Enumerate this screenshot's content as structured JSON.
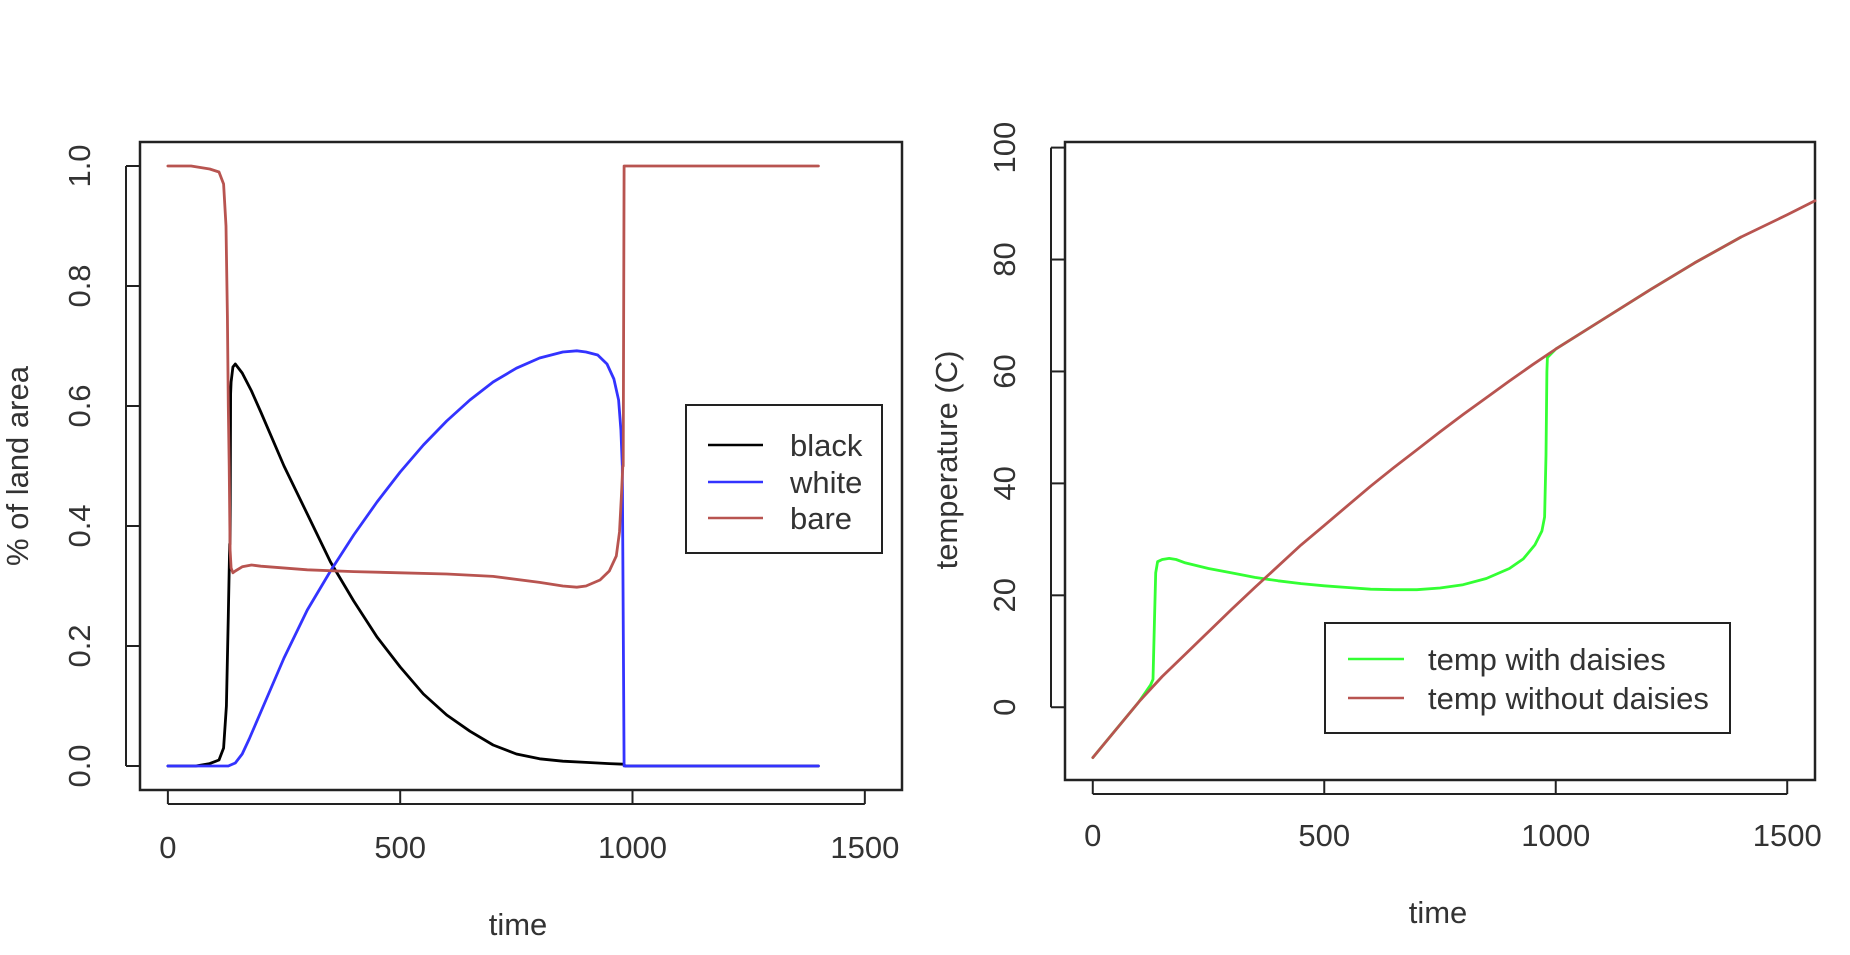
{
  "chart_data": [
    {
      "type": "line",
      "title": "",
      "xlabel": "time",
      "ylabel": "% of land area",
      "xlim": [
        -60,
        1580
      ],
      "ylim": [
        -0.04,
        1.04
      ],
      "xticks": [
        "0",
        "500",
        "1000",
        "1500"
      ],
      "yticks": [
        "0.0",
        "0.2",
        "0.4",
        "0.6",
        "0.8",
        "1.0"
      ],
      "grid": false,
      "legend_position": "right",
      "series": [
        {
          "name": "black",
          "color": "#000000",
          "points": [
            [
              0,
              0
            ],
            [
              60,
              0
            ],
            [
              90,
              0.004
            ],
            [
              110,
              0.01
            ],
            [
              120,
              0.03
            ],
            [
              126,
              0.1
            ],
            [
              130,
              0.25
            ],
            [
              133,
              0.37
            ],
            [
              134,
              0.37
            ],
            [
              135,
              0.62
            ],
            [
              136,
              0.64
            ],
            [
              140,
              0.665
            ],
            [
              145,
              0.67
            ],
            [
              160,
              0.655
            ],
            [
              180,
              0.625
            ],
            [
              200,
              0.59
            ],
            [
              250,
              0.5
            ],
            [
              300,
              0.42
            ],
            [
              350,
              0.34
            ],
            [
              400,
              0.275
            ],
            [
              450,
              0.215
            ],
            [
              500,
              0.165
            ],
            [
              550,
              0.12
            ],
            [
              600,
              0.085
            ],
            [
              650,
              0.058
            ],
            [
              700,
              0.035
            ],
            [
              750,
              0.02
            ],
            [
              800,
              0.012
            ],
            [
              850,
              0.008
            ],
            [
              900,
              0.006
            ],
            [
              950,
              0.004
            ],
            [
              980,
              0.003
            ],
            [
              985,
              0
            ],
            [
              1000,
              0
            ],
            [
              1400,
              0
            ]
          ]
        },
        {
          "name": "white",
          "color": "#3333ff",
          "points": [
            [
              0,
              0
            ],
            [
              100,
              0
            ],
            [
              130,
              0
            ],
            [
              145,
              0.005
            ],
            [
              160,
              0.02
            ],
            [
              175,
              0.045
            ],
            [
              200,
              0.09
            ],
            [
              250,
              0.18
            ],
            [
              300,
              0.26
            ],
            [
              350,
              0.325
            ],
            [
              400,
              0.385
            ],
            [
              450,
              0.44
            ],
            [
              500,
              0.49
            ],
            [
              550,
              0.535
            ],
            [
              600,
              0.575
            ],
            [
              650,
              0.61
            ],
            [
              700,
              0.64
            ],
            [
              750,
              0.663
            ],
            [
              800,
              0.68
            ],
            [
              850,
              0.69
            ],
            [
              880,
              0.692
            ],
            [
              900,
              0.69
            ],
            [
              925,
              0.685
            ],
            [
              945,
              0.67
            ],
            [
              960,
              0.645
            ],
            [
              970,
              0.61
            ],
            [
              975,
              0.56
            ],
            [
              978,
              0.5
            ],
            [
              982,
              0
            ],
            [
              1000,
              0
            ],
            [
              1400,
              0
            ]
          ]
        },
        {
          "name": "bare",
          "color": "#b85450",
          "points": [
            [
              0,
              1
            ],
            [
              50,
              1
            ],
            [
              90,
              0.995
            ],
            [
              110,
              0.99
            ],
            [
              120,
              0.97
            ],
            [
              125,
              0.9
            ],
            [
              128,
              0.75
            ],
            [
              130,
              0.6
            ],
            [
              132,
              0.5
            ],
            [
              134,
              0.36
            ],
            [
              136,
              0.33
            ],
            [
              140,
              0.322
            ],
            [
              145,
              0.325
            ],
            [
              160,
              0.332
            ],
            [
              180,
              0.335
            ],
            [
              200,
              0.333
            ],
            [
              300,
              0.327
            ],
            [
              400,
              0.324
            ],
            [
              500,
              0.322
            ],
            [
              600,
              0.32
            ],
            [
              700,
              0.316
            ],
            [
              800,
              0.306
            ],
            [
              850,
              0.3
            ],
            [
              880,
              0.298
            ],
            [
              900,
              0.3
            ],
            [
              930,
              0.31
            ],
            [
              950,
              0.325
            ],
            [
              965,
              0.35
            ],
            [
              972,
              0.39
            ],
            [
              976,
              0.45
            ],
            [
              979,
              0.5
            ],
            [
              980,
              0.5
            ],
            [
              982,
              1
            ],
            [
              1000,
              1
            ],
            [
              1400,
              1
            ]
          ]
        }
      ]
    },
    {
      "type": "line",
      "title": "",
      "xlabel": "time",
      "ylabel": "temperature (C)",
      "xlim": [
        -60,
        1560
      ],
      "ylim": [
        -13,
        101
      ],
      "xticks": [
        "0",
        "500",
        "1000",
        "1500"
      ],
      "yticks": [
        "0",
        "20",
        "40",
        "60",
        "80",
        "100"
      ],
      "grid": false,
      "legend_position": "bottom-right",
      "series": [
        {
          "name": "temp with daisies",
          "color": "#33ff33",
          "points": [
            [
              0,
              -9
            ],
            [
              50,
              -4
            ],
            [
              100,
              1
            ],
            [
              125,
              4
            ],
            [
              130,
              5
            ],
            [
              133,
              15
            ],
            [
              136,
              24
            ],
            [
              140,
              26
            ],
            [
              150,
              26.4
            ],
            [
              165,
              26.6
            ],
            [
              180,
              26.4
            ],
            [
              200,
              25.8
            ],
            [
              250,
              24.8
            ],
            [
              300,
              24
            ],
            [
              350,
              23.2
            ],
            [
              400,
              22.6
            ],
            [
              450,
              22.1
            ],
            [
              500,
              21.7
            ],
            [
              550,
              21.4
            ],
            [
              600,
              21.1
            ],
            [
              650,
              21
            ],
            [
              700,
              21
            ],
            [
              750,
              21.3
            ],
            [
              800,
              21.9
            ],
            [
              850,
              23
            ],
            [
              900,
              24.8
            ],
            [
              930,
              26.5
            ],
            [
              955,
              29
            ],
            [
              970,
              31.5
            ],
            [
              976,
              34
            ],
            [
              979,
              45
            ],
            [
              981,
              60
            ],
            [
              982,
              62.5
            ],
            [
              1000,
              64
            ],
            [
              1100,
              69.2
            ],
            [
              1200,
              74.4
            ],
            [
              1300,
              79.4
            ],
            [
              1400,
              84
            ]
          ]
        },
        {
          "name": "temp without daisies",
          "color": "#b85450",
          "points": [
            [
              0,
              -9
            ],
            [
              100,
              1
            ],
            [
              150,
              5.5
            ],
            [
              200,
              9.5
            ],
            [
              250,
              13.5
            ],
            [
              300,
              17.5
            ],
            [
              350,
              21.4
            ],
            [
              400,
              25.2
            ],
            [
              450,
              29
            ],
            [
              500,
              32.5
            ],
            [
              550,
              36
            ],
            [
              600,
              39.5
            ],
            [
              650,
              42.8
            ],
            [
              700,
              46
            ],
            [
              750,
              49.2
            ],
            [
              800,
              52.3
            ],
            [
              850,
              55.3
            ],
            [
              900,
              58.3
            ],
            [
              950,
              61.2
            ],
            [
              1000,
              64
            ],
            [
              1100,
              69.2
            ],
            [
              1200,
              74.4
            ],
            [
              1300,
              79.4
            ],
            [
              1400,
              84
            ],
            [
              1500,
              88
            ],
            [
              1560,
              90.5
            ]
          ]
        }
      ]
    }
  ]
}
